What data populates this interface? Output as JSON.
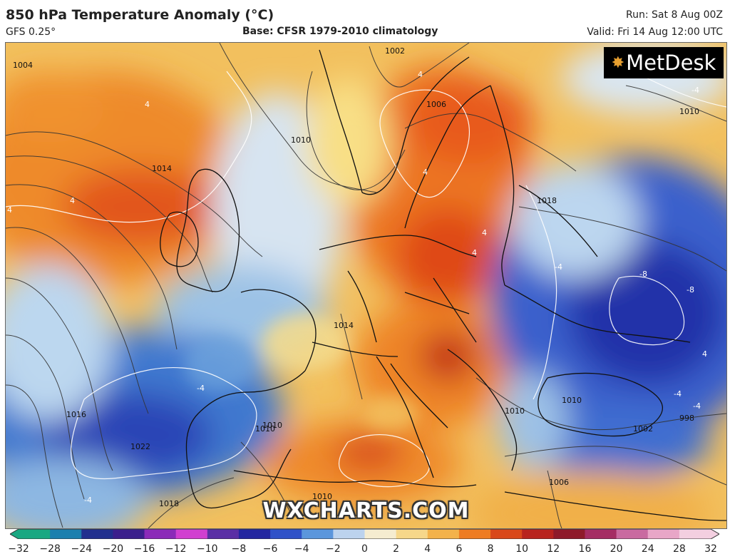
{
  "header": {
    "title": "850 hPa Temperature Anomaly (°C)",
    "model": "GFS 0.25°",
    "base": "Base: CFSR 1979-2010 climatology",
    "run": "Run: Sat 8 Aug 00Z",
    "valid": "Valid: Fri 14 Aug 12:00 UTC"
  },
  "logo": {
    "text": "MetDesk",
    "icon": "metdesk-star-icon"
  },
  "watermark": "WXCHARTS.COM",
  "isobar_labels": [
    "1014",
    "1010",
    "1006",
    "1004",
    "1002",
    "1018",
    "1010",
    "1016",
    "1022",
    "1018",
    "1010",
    "1010",
    "1006",
    "1002",
    "998",
    "1010",
    "1010",
    "1014",
    "1010"
  ],
  "anomaly_labels": [
    "4",
    "4",
    "4",
    "4",
    "4",
    "4",
    "4",
    "-4",
    "-4",
    "-4",
    "-4",
    "-8",
    "-8",
    "4",
    "-4",
    "-4"
  ],
  "colorbar": {
    "ticks": [
      "−32",
      "−28",
      "−24",
      "−20",
      "−16",
      "−12",
      "−10",
      "−8",
      "−6",
      "−4",
      "−2",
      "0",
      "2",
      "4",
      "6",
      "8",
      "10",
      "12",
      "16",
      "20",
      "24",
      "28",
      "32"
    ],
    "colors": [
      "#1aa882",
      "#1b7fae",
      "#21308e",
      "#3b1f8c",
      "#8b2ab8",
      "#d13fd0",
      "#5a2fa5",
      "#2326a0",
      "#2f52c8",
      "#5b96dc",
      "#bcd3ee",
      "#f5ecd0",
      "#f6d78a",
      "#f3b24a",
      "#ee7c22",
      "#d9481a",
      "#b8231e",
      "#8e1a2a",
      "#a52d64",
      "#c96aa0",
      "#e8a6c7",
      "#f3cfe0"
    ]
  }
}
